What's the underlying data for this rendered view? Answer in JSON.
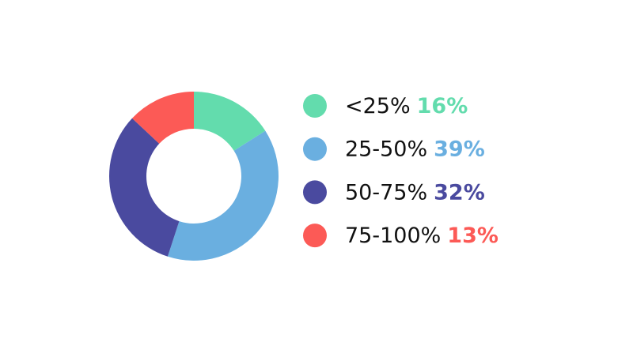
{
  "chart_data": {
    "type": "donut",
    "categories": [
      "<25%",
      "25-50%",
      "50-75%",
      "75-100%"
    ],
    "values": [
      16,
      39,
      32,
      13
    ],
    "value_labels": [
      "16%",
      "39%",
      "32%",
      "13%"
    ],
    "colors": [
      "#63dcad",
      "#6aafe0",
      "#4a4a9f",
      "#fc5a56"
    ]
  }
}
